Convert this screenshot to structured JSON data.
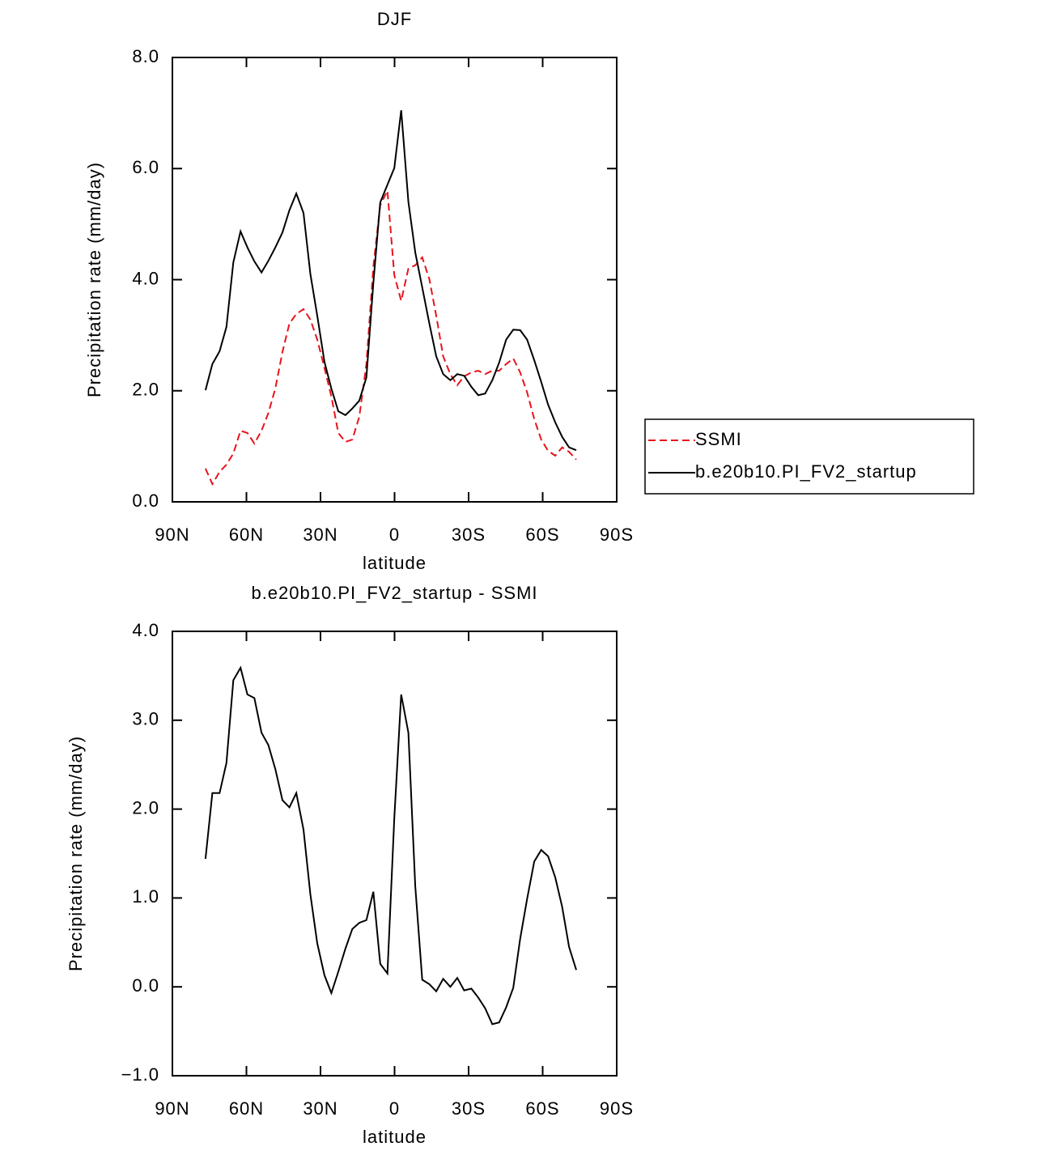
{
  "chart_data": [
    {
      "type": "line",
      "title": "DJF",
      "x_label": "latitude",
      "y_label": "Precipitation rate (mm/day)",
      "x": [
        76.6,
        73.8,
        70.9,
        68.1,
        65.3,
        62.4,
        59.6,
        56.8,
        53.9,
        51.1,
        48.3,
        45.4,
        42.6,
        39.8,
        36.9,
        34.1,
        31.3,
        28.4,
        25.6,
        22.8,
        19.9,
        17.1,
        14.3,
        11.4,
        8.6,
        5.8,
        2.9,
        0.1,
        -2.7,
        -5.6,
        -8.4,
        -11.2,
        -14.1,
        -16.9,
        -19.7,
        -22.6,
        -25.4,
        -28.2,
        -31.1,
        -33.9,
        -36.7,
        -39.6,
        -42.4,
        -45.2,
        -48.1,
        -50.9,
        -53.7,
        -56.6,
        -59.4,
        -62.2,
        -65.1,
        -67.9,
        -70.7,
        -73.6
      ],
      "series": [
        {
          "name": "SSMI",
          "color": "#e8141b",
          "linestyle": "dashed",
          "values": [
            0.6,
            0.32,
            0.54,
            0.67,
            0.87,
            1.28,
            1.24,
            1.05,
            1.28,
            1.6,
            2.04,
            2.7,
            3.21,
            3.38,
            3.47,
            3.28,
            2.92,
            2.41,
            1.9,
            1.24,
            1.08,
            1.12,
            1.53,
            2.48,
            4.23,
            5.34,
            5.6,
            4.08,
            3.62,
            4.2,
            4.26,
            4.4,
            4.01,
            3.35,
            2.62,
            2.3,
            2.1,
            2.26,
            2.33,
            2.36,
            2.3,
            2.36,
            2.36,
            2.48,
            2.58,
            2.33,
            1.97,
            1.49,
            1.12,
            0.92,
            0.83,
            0.98,
            0.9,
            0.76
          ]
        },
        {
          "name": "b.e20b10.PI_FV2_startup",
          "color": "#000000",
          "linestyle": "solid",
          "values": [
            2.01,
            2.48,
            2.71,
            3.15,
            4.31,
            4.87,
            4.58,
            4.33,
            4.13,
            4.34,
            4.58,
            4.85,
            5.25,
            5.55,
            5.2,
            4.1,
            3.35,
            2.52,
            2.04,
            1.63,
            1.56,
            1.68,
            1.82,
            2.24,
            3.94,
            5.39,
            5.71,
            6.01,
            7.05,
            5.4,
            4.49,
            3.86,
            3.21,
            2.62,
            2.3,
            2.19,
            2.3,
            2.27,
            2.07,
            1.92,
            1.95,
            2.19,
            2.51,
            2.92,
            3.1,
            3.09,
            2.92,
            2.55,
            2.16,
            1.75,
            1.43,
            1.17,
            0.98,
            0.93
          ]
        }
      ],
      "xlim": [
        90,
        -90
      ],
      "xticks": [
        {
          "value": 90,
          "label": "90N"
        },
        {
          "value": 60,
          "label": "60N"
        },
        {
          "value": 30,
          "label": "30N"
        },
        0,
        {
          "value": -30,
          "label": "30S"
        },
        {
          "value": -60,
          "label": "60S"
        },
        {
          "value": -90,
          "label": "90S"
        }
      ],
      "ylim": [
        0,
        8
      ],
      "yticks": [
        {
          "value": 0,
          "label": "0.0"
        },
        {
          "value": 2,
          "label": "2.0"
        },
        {
          "value": 4,
          "label": "4.0"
        },
        {
          "value": 6,
          "label": "6.0"
        },
        {
          "value": 8,
          "label": "8.0"
        }
      ],
      "legend": "outside-right"
    },
    {
      "type": "line",
      "title": "b.e20b10.PI_FV2_startup - SSMI",
      "x_label": "latitude",
      "y_label": "Precipitation rate (mm/day)",
      "x": [
        76.6,
        73.8,
        70.9,
        68.1,
        65.3,
        62.4,
        59.6,
        56.8,
        53.9,
        51.1,
        48.3,
        45.4,
        42.6,
        39.8,
        36.9,
        34.1,
        31.3,
        28.4,
        25.6,
        22.8,
        19.9,
        17.1,
        14.3,
        11.4,
        8.6,
        5.8,
        2.9,
        0.1,
        -2.7,
        -5.6,
        -8.4,
        -11.2,
        -14.1,
        -16.9,
        -19.7,
        -22.6,
        -25.4,
        -28.2,
        -31.1,
        -33.9,
        -36.7,
        -39.6,
        -42.4,
        -45.2,
        -48.1,
        -50.9,
        -53.7,
        -56.6,
        -59.4,
        -62.2,
        -65.1,
        -67.9,
        -70.7,
        -73.6
      ],
      "values": [
        1.44,
        2.18,
        2.18,
        2.52,
        3.45,
        3.59,
        3.29,
        3.25,
        2.86,
        2.72,
        2.45,
        2.1,
        2.02,
        2.18,
        1.77,
        1.04,
        0.49,
        0.13,
        -0.07,
        0.17,
        0.43,
        0.65,
        0.72,
        0.75,
        1.07,
        0.26,
        0.15,
        1.9,
        3.29,
        2.86,
        1.13,
        0.08,
        0.03,
        -0.05,
        0.09,
        0.0,
        0.1,
        -0.04,
        -0.02,
        -0.12,
        -0.24,
        -0.42,
        -0.4,
        -0.23,
        -0.01,
        0.54,
        0.99,
        1.41,
        1.54,
        1.47,
        1.23,
        0.9,
        0.45,
        0.19
      ],
      "color": "#000000",
      "xlim": [
        90,
        -90
      ],
      "xticks": [
        {
          "value": 90,
          "label": "90N"
        },
        {
          "value": 60,
          "label": "60N"
        },
        {
          "value": 30,
          "label": "30N"
        },
        0,
        {
          "value": -30,
          "label": "30S"
        },
        {
          "value": -60,
          "label": "60S"
        },
        {
          "value": -90,
          "label": "90S"
        }
      ],
      "ylim": [
        -1,
        4
      ],
      "yticks": [
        {
          "value": -1,
          "label": "−1.0"
        },
        {
          "value": 0,
          "label": "0.0"
        },
        {
          "value": 1,
          "label": "1.0"
        },
        {
          "value": 2,
          "label": "2.0"
        },
        {
          "value": 3,
          "label": "3.0"
        },
        {
          "value": 4,
          "label": "4.0"
        }
      ]
    }
  ]
}
